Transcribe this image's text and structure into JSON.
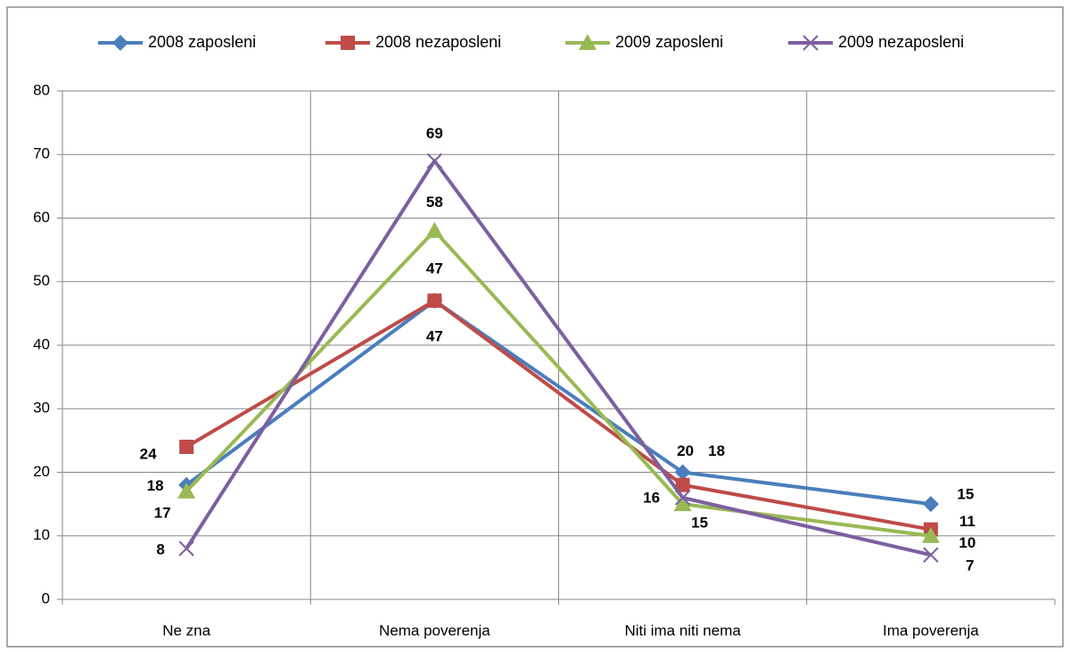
{
  "chart_data": {
    "type": "line",
    "categories": [
      "Ne zna",
      "Nema poverenja",
      "Niti ima niti nema",
      "Ima poverenja"
    ],
    "series": [
      {
        "name": "2008 zaposleni",
        "color": "#4a7ebb",
        "marker": "diamond",
        "values": [
          18,
          47,
          20,
          15
        ]
      },
      {
        "name": "2008 nezaposleni",
        "color": "#be4b48",
        "marker": "square",
        "values": [
          24,
          47,
          18,
          11
        ]
      },
      {
        "name": "2009 zaposleni",
        "color": "#98b954",
        "marker": "triangle",
        "values": [
          17,
          58,
          15,
          10
        ]
      },
      {
        "name": "2009 nezaposleni",
        "color": "#7d5fa0",
        "marker": "x",
        "values": [
          8,
          69,
          16,
          7
        ]
      }
    ],
    "ylim": [
      0,
      80
    ],
    "yticks": [
      0,
      10,
      20,
      30,
      40,
      50,
      60,
      70,
      80
    ],
    "grid": true,
    "legend": "top"
  }
}
